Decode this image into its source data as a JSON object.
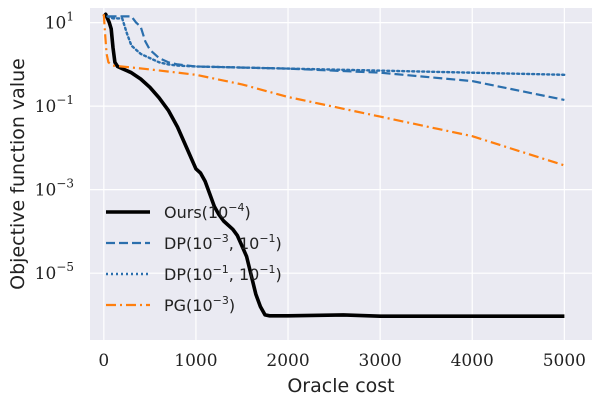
{
  "chart_data": {
    "type": "line",
    "title": "",
    "xlabel": "Oracle cost",
    "ylabel": "Objective function value",
    "xlim": [
      -150,
      5300
    ],
    "ylim_log10": [
      -6.6,
      1.35
    ],
    "y_scale": "log",
    "grid": true,
    "legend_placement": "lower-left",
    "background_color": "#eaeaf2",
    "x_ticks": [
      0,
      1000,
      2000,
      3000,
      4000,
      5000
    ],
    "x_tick_labels": [
      "0",
      "1000",
      "2000",
      "3000",
      "4000",
      "5000"
    ],
    "y_tick_exponents": [
      1,
      -1,
      -3,
      -5
    ],
    "y_tick_base": "10",
    "series": [
      {
        "name": "Ours(10",
        "name_sup": "−4",
        "name_suffix": ")",
        "color": "#000000",
        "style": "solid",
        "points": [
          [
            0,
            1.15
          ],
          [
            20,
            1.2
          ],
          [
            40,
            1.1
          ],
          [
            60,
            1.0
          ],
          [
            80,
            0.85
          ],
          [
            100,
            0.4
          ],
          [
            120,
            0.05
          ],
          [
            150,
            -0.05
          ],
          [
            200,
            -0.1
          ],
          [
            300,
            -0.2
          ],
          [
            400,
            -0.35
          ],
          [
            500,
            -0.55
          ],
          [
            600,
            -0.8
          ],
          [
            700,
            -1.1
          ],
          [
            800,
            -1.5
          ],
          [
            900,
            -2.0
          ],
          [
            1000,
            -2.5
          ],
          [
            1050,
            -2.6
          ],
          [
            1100,
            -2.8
          ],
          [
            1150,
            -3.1
          ],
          [
            1200,
            -3.4
          ],
          [
            1250,
            -3.6
          ],
          [
            1300,
            -3.75
          ],
          [
            1400,
            -3.95
          ],
          [
            1450,
            -4.1
          ],
          [
            1500,
            -4.35
          ],
          [
            1550,
            -4.6
          ],
          [
            1600,
            -5.05
          ],
          [
            1650,
            -5.5
          ],
          [
            1700,
            -5.8
          ],
          [
            1750,
            -6.0
          ],
          [
            1800,
            -6.02
          ],
          [
            2000,
            -6.02
          ],
          [
            2600,
            -6.0
          ],
          [
            3000,
            -6.03
          ],
          [
            4000,
            -6.03
          ],
          [
            5000,
            -6.03
          ]
        ]
      },
      {
        "name": "DP(10",
        "name_sup": "−3",
        "name_mid": ", 10",
        "name_sup2": "−1",
        "name_suffix": ")",
        "color": "#2b6fad",
        "style": "dashed",
        "points": [
          [
            40,
            1.15
          ],
          [
            100,
            1.15
          ],
          [
            200,
            1.15
          ],
          [
            300,
            1.15
          ],
          [
            350,
            1.0
          ],
          [
            400,
            0.9
          ],
          [
            450,
            0.55
          ],
          [
            500,
            0.35
          ],
          [
            550,
            0.25
          ],
          [
            600,
            0.15
          ],
          [
            700,
            0.05
          ],
          [
            800,
            0.0
          ],
          [
            1000,
            -0.05
          ],
          [
            2000,
            -0.1
          ],
          [
            3000,
            -0.2
          ],
          [
            4000,
            -0.4
          ],
          [
            5000,
            -0.85
          ]
        ]
      },
      {
        "name": "DP(10",
        "name_sup": "−1",
        "name_mid": ", 10",
        "name_sup2": "−1",
        "name_suffix": ")",
        "color": "#2b6fad",
        "style": "dotted",
        "points": [
          [
            40,
            1.15
          ],
          [
            100,
            1.1
          ],
          [
            200,
            1.1
          ],
          [
            250,
            0.75
          ],
          [
            300,
            0.45
          ],
          [
            400,
            0.25
          ],
          [
            500,
            0.15
          ],
          [
            600,
            0.05
          ],
          [
            700,
            0.0
          ],
          [
            800,
            -0.03
          ],
          [
            1000,
            -0.05
          ],
          [
            2000,
            -0.1
          ],
          [
            3000,
            -0.15
          ],
          [
            4000,
            -0.2
          ],
          [
            5000,
            -0.25
          ]
        ]
      },
      {
        "name": "PG(10",
        "name_sup": "−3",
        "name_suffix": ")",
        "color": "#ff7f0e",
        "style": "dashdot",
        "points": [
          [
            0,
            1.2
          ],
          [
            15,
            0.7
          ],
          [
            30,
            0.25
          ],
          [
            50,
            0.05
          ],
          [
            100,
            -0.03
          ],
          [
            500,
            -0.12
          ],
          [
            1000,
            -0.25
          ],
          [
            1500,
            -0.48
          ],
          [
            2000,
            -0.78
          ],
          [
            3000,
            -1.25
          ],
          [
            4000,
            -1.72
          ],
          [
            5000,
            -2.42
          ]
        ]
      }
    ]
  }
}
